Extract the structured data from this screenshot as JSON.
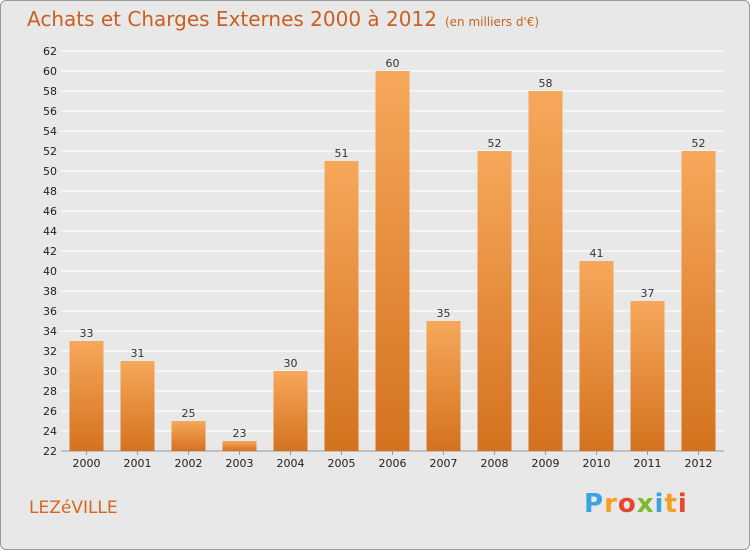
{
  "header": {
    "title": "Achats et Charges Externes 2000 à 2012",
    "subtitle": "(en milliers d'€)"
  },
  "footer": {
    "commune": "LEZéVILLE",
    "logo_letters": [
      "P",
      "r",
      "o",
      "x",
      "i",
      "t",
      "i"
    ],
    "logo_colors": [
      "#3aa3e0",
      "#f2a11c",
      "#e8452c",
      "#7dbb2a",
      "#3aa3e0",
      "#f2a11c",
      "#e8452c"
    ]
  },
  "colors": {
    "bar_top": "#f6a85a",
    "bar_bottom": "#d4721e",
    "grid": "#ffffff",
    "background": "#e8e8e8"
  },
  "chart_data": {
    "type": "bar",
    "categories": [
      "2000",
      "2001",
      "2002",
      "2003",
      "2004",
      "2005",
      "2006",
      "2007",
      "2008",
      "2009",
      "2010",
      "2011",
      "2012"
    ],
    "values": [
      33,
      31,
      25,
      23,
      30,
      51,
      60,
      35,
      52,
      58,
      41,
      37,
      52
    ],
    "title": "Achats et Charges Externes 2000 à 2012",
    "subtitle": "(en milliers d'€)",
    "xlabel": "",
    "ylabel": "",
    "ylim": [
      22,
      62
    ],
    "yticks": [
      22,
      24,
      26,
      28,
      30,
      32,
      34,
      36,
      38,
      40,
      42,
      44,
      46,
      48,
      50,
      52,
      54,
      56,
      58,
      60,
      62
    ],
    "grid": true
  }
}
